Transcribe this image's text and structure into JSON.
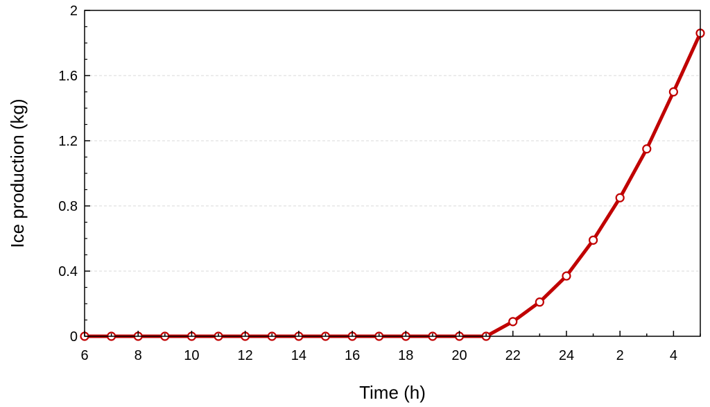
{
  "chart_data": {
    "type": "line",
    "title": "",
    "xlabel": "Time (h)",
    "ylabel": "Ice production (kg)",
    "x": [
      6,
      7,
      8,
      9,
      10,
      11,
      12,
      13,
      14,
      15,
      16,
      17,
      18,
      19,
      20,
      21,
      22,
      23,
      24,
      25,
      26,
      27,
      28,
      29
    ],
    "x_tick_labels": [
      "6",
      "8",
      "10",
      "12",
      "14",
      "16",
      "18",
      "20",
      "22",
      "24",
      "2",
      "4"
    ],
    "y_tick_labels": [
      "0",
      "0.4",
      "0.8",
      "1.2",
      "1.6",
      "2"
    ],
    "series": [
      {
        "values": [
          0,
          0,
          0,
          0,
          0,
          0,
          0,
          0,
          0,
          0,
          0,
          0,
          0,
          0,
          0,
          0,
          0.09,
          0.21,
          0.37,
          0.59,
          0.85,
          1.15,
          1.5,
          1.86
        ],
        "color": "#c00000"
      }
    ],
    "xlim": [
      6,
      29
    ],
    "ylim": [
      0,
      2
    ],
    "grid": "horizontal dashed",
    "legend": "none",
    "colors": {
      "line": "#c00000",
      "marker_fill": "#ffffff",
      "gridline": "#d9d9d9",
      "axis": "#000000"
    }
  }
}
